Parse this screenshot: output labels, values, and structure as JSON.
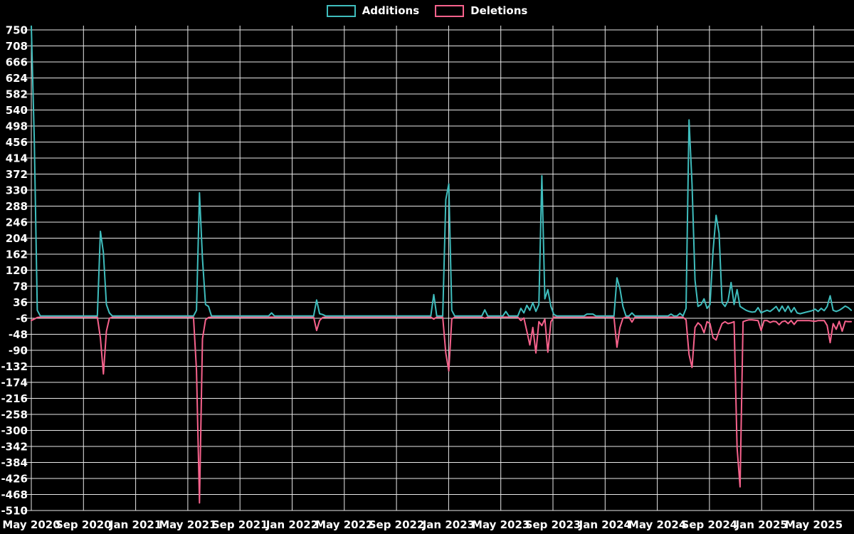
{
  "legend": {
    "items": [
      {
        "id": "additions",
        "label": "Additions",
        "color": "#3fbdbd"
      },
      {
        "id": "deletions",
        "label": "Deletions",
        "color": "#f7628c"
      }
    ]
  },
  "colors": {
    "background": "#000000",
    "grid": "#e8e8e8",
    "text": "#ffffff",
    "additions": "#3fbdbd",
    "deletions": "#f7628c"
  },
  "chart_data": {
    "type": "line",
    "title": "",
    "xlabel": "",
    "ylabel": "",
    "grid": true,
    "legend_position": "top-center",
    "ylim": [
      -510,
      750
    ],
    "y_ticks": [
      750,
      708,
      666,
      624,
      582,
      540,
      498,
      456,
      414,
      372,
      330,
      288,
      246,
      204,
      162,
      120,
      78,
      36,
      -6,
      -48,
      -90,
      -132,
      -174,
      -216,
      -258,
      -300,
      -342,
      -384,
      -426,
      -468,
      -510
    ],
    "x_ticks": [
      "May 2020",
      "Sep 2020",
      "Jan 2021",
      "May 2021",
      "Sep 2021",
      "Jan 2022",
      "May 2022",
      "Sep 2022",
      "Jan 2023",
      "May 2023",
      "Sep 2023",
      "Jan 2024",
      "May 2024",
      "Sep 2024",
      "Jan 2025",
      "May 2025"
    ],
    "x_unit": "week",
    "weeks_total": 274,
    "series": [
      {
        "name": "Additions",
        "key": 0
      },
      {
        "name": "Deletions",
        "key": 1
      }
    ],
    "baseline": {
      "additions": 0,
      "deletions": -3
    },
    "spikes": {
      "0": [
        760,
        -12
      ],
      "1": [
        460,
        -8
      ],
      "2": [
        15,
        -4
      ],
      "23": [
        222,
        -58
      ],
      "24": [
        166,
        -152
      ],
      "25": [
        30,
        -40
      ],
      "26": [
        8,
        -6
      ],
      "55": [
        15,
        -142
      ],
      "56": [
        323,
        -490
      ],
      "57": [
        150,
        -60
      ],
      "58": [
        30,
        -10
      ],
      "59": [
        25,
        -4
      ],
      "80": [
        8,
        -3
      ],
      "95": [
        42,
        -38
      ],
      "96": [
        6,
        -12
      ],
      "97": [
        4,
        -4
      ],
      "134": [
        56,
        -8
      ],
      "138": [
        305,
        -97
      ],
      "139": [
        346,
        -144
      ],
      "140": [
        15,
        -8
      ],
      "151": [
        16,
        -6
      ],
      "158": [
        12,
        -3
      ],
      "163": [
        20,
        -12
      ],
      "164": [
        8,
        -5
      ],
      "165": [
        28,
        -40
      ],
      "166": [
        15,
        -76
      ],
      "167": [
        35,
        -30
      ],
      "168": [
        12,
        -97
      ],
      "169": [
        30,
        -15
      ],
      "170": [
        368,
        -25
      ],
      "171": [
        45,
        -8
      ],
      "172": [
        69,
        -95
      ],
      "173": [
        25,
        -15
      ],
      "174": [
        4,
        -3
      ],
      "185": [
        5,
        -3
      ],
      "186": [
        5,
        -3
      ],
      "187": [
        5,
        -3
      ],
      "195": [
        100,
        -82
      ],
      "196": [
        72,
        -30
      ],
      "197": [
        25,
        -6
      ],
      "200": [
        8,
        -16
      ],
      "213": [
        5,
        -3
      ],
      "216": [
        7,
        -3
      ],
      "218": [
        20,
        -10
      ],
      "219": [
        514,
        -101
      ],
      "220": [
        346,
        -135
      ],
      "221": [
        94,
        -30
      ],
      "222": [
        25,
        -18
      ],
      "223": [
        30,
        -25
      ],
      "224": [
        45,
        -44
      ],
      "225": [
        20,
        -15
      ],
      "226": [
        30,
        -20
      ],
      "227": [
        170,
        -57
      ],
      "228": [
        264,
        -63
      ],
      "229": [
        217,
        -40
      ],
      "230": [
        35,
        -20
      ],
      "231": [
        25,
        -15
      ],
      "232": [
        40,
        -20
      ],
      "233": [
        88,
        -18
      ],
      "234": [
        30,
        -15
      ],
      "235": [
        69,
        -345
      ],
      "236": [
        25,
        -448
      ],
      "237": [
        20,
        -15
      ],
      "238": [
        15,
        -12
      ],
      "239": [
        12,
        -10
      ],
      "240": [
        10,
        -10
      ],
      "241": [
        11,
        -11
      ],
      "242": [
        22,
        -12
      ],
      "243": [
        8,
        -38
      ],
      "244": [
        12,
        -12
      ],
      "245": [
        15,
        -12
      ],
      "246": [
        12,
        -17
      ],
      "247": [
        18,
        -14
      ],
      "248": [
        25,
        -15
      ],
      "249": [
        12,
        -23
      ],
      "250": [
        26,
        -15
      ],
      "251": [
        12,
        -13
      ],
      "252": [
        26,
        -20
      ],
      "253": [
        10,
        -12
      ],
      "254": [
        22,
        -22
      ],
      "255": [
        8,
        -12
      ],
      "256": [
        6,
        -12
      ],
      "257": [
        8,
        -12
      ],
      "258": [
        10,
        -12
      ],
      "259": [
        12,
        -12
      ],
      "260": [
        14,
        -13
      ],
      "261": [
        18,
        -14
      ],
      "262": [
        12,
        -12
      ],
      "263": [
        20,
        -12
      ],
      "264": [
        14,
        -12
      ],
      "265": [
        25,
        -25
      ],
      "266": [
        53,
        -70
      ],
      "267": [
        15,
        -20
      ],
      "268": [
        12,
        -35
      ],
      "269": [
        15,
        -14
      ],
      "270": [
        20,
        -40
      ],
      "271": [
        26,
        -14
      ],
      "272": [
        22,
        -15
      ],
      "273": [
        15,
        -15
      ]
    }
  }
}
